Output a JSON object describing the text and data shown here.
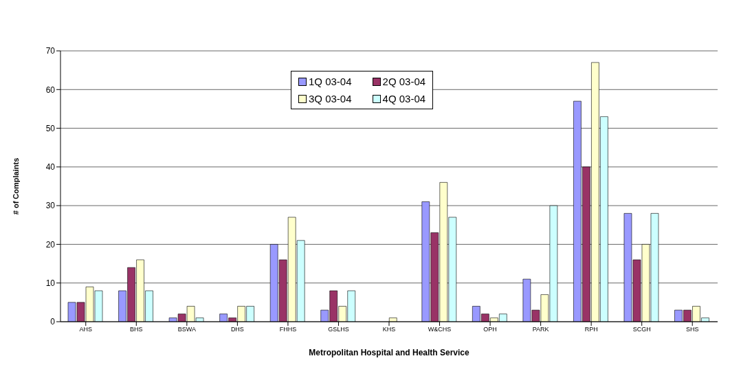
{
  "chart_data": {
    "type": "bar",
    "xlabel": "Metropolitan Hospital and Health Service",
    "ylabel": "# of Complaints",
    "categories": [
      "AHS",
      "BHS",
      "BSWA",
      "DHS",
      "FHHS",
      "GSLHS",
      "KHS",
      "W&CHS",
      "OPH",
      "PARK",
      "RPH",
      "SCGH",
      "SHS"
    ],
    "series": [
      {
        "name": "1Q 03-04",
        "color": "#9999ff",
        "values": [
          5,
          8,
          1,
          2,
          20,
          3,
          0,
          31,
          4,
          11,
          57,
          28,
          3
        ]
      },
      {
        "name": "2Q 03-04",
        "color": "#993366",
        "values": [
          5,
          14,
          2,
          1,
          16,
          8,
          0,
          23,
          2,
          3,
          40,
          16,
          3
        ]
      },
      {
        "name": "3Q 03-04",
        "color": "#ffffcc",
        "values": [
          9,
          16,
          4,
          4,
          27,
          4,
          1,
          36,
          1,
          7,
          67,
          20,
          4
        ]
      },
      {
        "name": "4Q 03-04",
        "color": "#ccffff",
        "values": [
          8,
          8,
          1,
          4,
          21,
          8,
          0,
          27,
          2,
          30,
          53,
          28,
          1
        ]
      }
    ],
    "ylim": [
      0,
      70
    ],
    "yticks": [
      0,
      10,
      20,
      30,
      40,
      50,
      60,
      70
    ],
    "grid": "y",
    "legend": "top"
  }
}
